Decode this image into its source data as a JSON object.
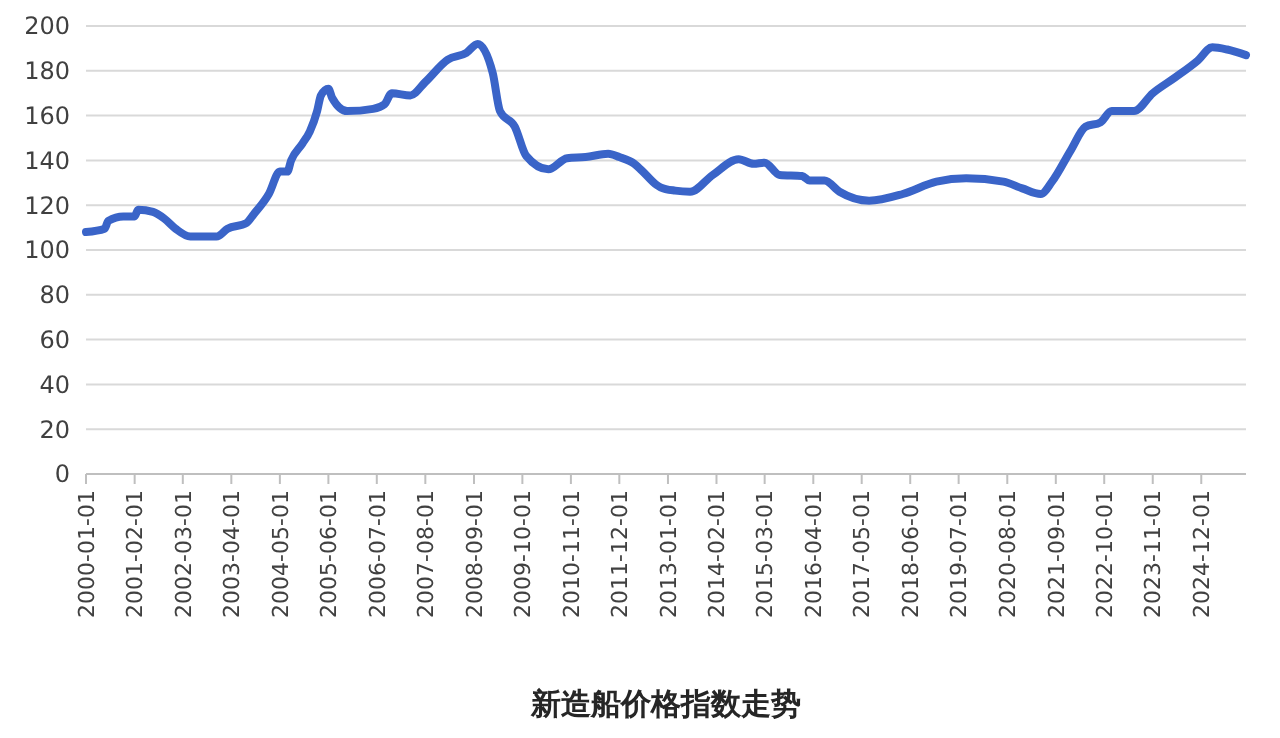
{
  "chart_data": {
    "type": "line",
    "title": "新造船价格指数走势",
    "x": [
      "2000-01",
      "2000-06",
      "2000-07",
      "2000-11",
      "2001-02",
      "2001-03",
      "2001-07",
      "2001-10",
      "2002-01",
      "2002-05",
      "2002-12",
      "2003-03",
      "2003-08",
      "2003-10",
      "2004-02",
      "2004-05",
      "2004-07",
      "2004-08",
      "2004-11",
      "2005-01",
      "2005-03",
      "2005-04",
      "2005-06",
      "2005-07",
      "2005-11",
      "2006-06",
      "2006-09",
      "2006-11",
      "2007-04",
      "2007-08",
      "2008-02",
      "2008-07",
      "2008-10",
      "2009-02",
      "2009-04",
      "2009-08",
      "2009-11",
      "2010-05",
      "2010-10",
      "2011-03",
      "2011-09",
      "2011-12",
      "2012-04",
      "2012-06",
      "2012-10",
      "2012-11",
      "2013-03",
      "2013-07",
      "2014-01",
      "2014-08",
      "2014-12",
      "2015-03",
      "2015-07",
      "2016-01",
      "2016-03",
      "2016-07",
      "2016-11",
      "2017-07",
      "2018-04",
      "2019-01",
      "2019-09",
      "2020-07",
      "2020-12",
      "2021-05",
      "2021-08",
      "2022-01",
      "2022-05",
      "2022-09",
      "2022-12",
      "2023-06",
      "2023-11",
      "2024-05",
      "2024-11",
      "2025-03",
      "2025-07",
      "2025-12"
    ],
    "series": [
      {
        "color": "#3a64c8",
        "values": [
          108,
          109.5,
          113,
          115,
          115,
          118,
          117,
          114,
          109.5,
          106,
          106,
          109.5,
          112,
          116,
          125,
          135,
          135,
          140,
          147.5,
          153,
          162,
          169,
          172,
          168,
          162,
          163,
          165,
          170,
          169,
          175,
          185,
          188,
          192,
          179,
          162,
          155,
          142,
          136,
          141,
          141.5,
          143,
          141.5,
          138.5,
          135.5,
          129,
          128,
          126.5,
          126,
          133.5,
          140.5,
          138.5,
          139,
          133.5,
          133,
          131,
          131,
          126,
          122,
          125,
          130.5,
          132,
          130.5,
          127.5,
          125,
          130.5,
          144.5,
          155,
          157,
          162,
          162,
          170,
          177,
          184.5,
          190.5,
          189.5,
          187
        ]
      }
    ],
    "xlim": [
      "2000-01",
      "2025-12"
    ],
    "xticks": [
      "2000-01-01",
      "2001-02-01",
      "2002-03-01",
      "2003-04-01",
      "2004-05-01",
      "2005-06-01",
      "2006-07-01",
      "2007-08-01",
      "2008-09-01",
      "2009-10-01",
      "2010-11-01",
      "2011-12-01",
      "2013-01-01",
      "2014-02-01",
      "2015-03-01",
      "2016-04-01",
      "2017-05-01",
      "2018-06-01",
      "2019-07-01",
      "2020-08-01",
      "2021-09-01",
      "2022-10-01",
      "2023-11-01",
      "2024-12-01"
    ],
    "ylim": [
      0,
      200
    ],
    "yticks": [
      0,
      20,
      40,
      60,
      80,
      100,
      120,
      140,
      160,
      180,
      200
    ],
    "grid": "y",
    "marker": "none",
    "line_style": "solid"
  }
}
